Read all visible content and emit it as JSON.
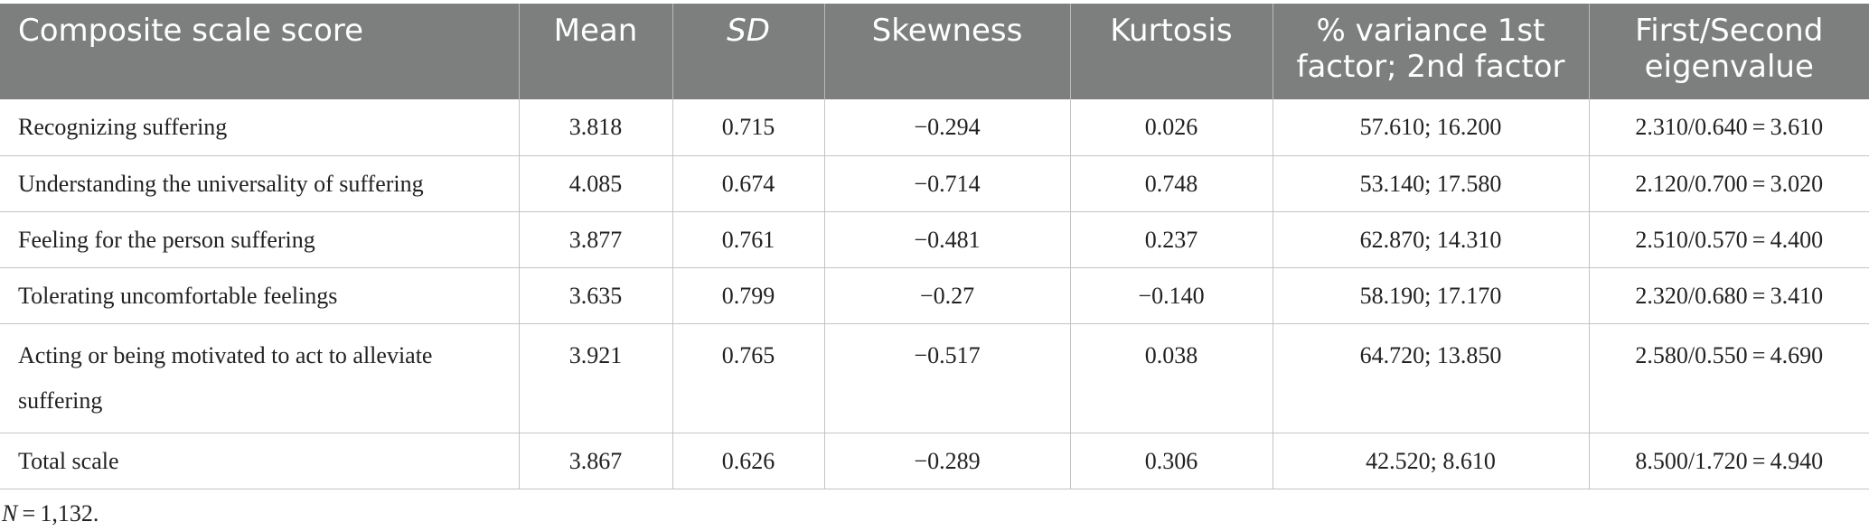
{
  "table": {
    "headers": [
      "Composite scale score",
      "Mean",
      "SD",
      "Skewness",
      "Kurtosis",
      "% variance 1st factor; 2nd factor",
      "First/Second eigenvalue"
    ],
    "rows": [
      [
        "Recognizing suffering",
        "3.818",
        "0.715",
        "−0.294",
        "0.026",
        "57.610; 16.200",
        "2.310/0.640 = 3.610"
      ],
      [
        "Understanding the universality of suffering",
        "4.085",
        "0.674",
        "−0.714",
        "0.748",
        "53.140; 17.580",
        "2.120/0.700 = 3.020"
      ],
      [
        "Feeling for the person suffering",
        "3.877",
        "0.761",
        "−0.481",
        "0.237",
        "62.870; 14.310",
        "2.510/0.570 = 4.400"
      ],
      [
        "Tolerating uncomfortable feelings",
        "3.635",
        "0.799",
        "−0.27",
        "−0.140",
        "58.190; 17.170",
        "2.320/0.680 = 3.410"
      ],
      [
        "Acting or being motivated to act to alleviate suffering",
        "3.921",
        "0.765",
        "−0.517",
        "0.038",
        "64.720; 13.850",
        "2.580/0.550 = 4.690"
      ],
      [
        "Total scale",
        "3.867",
        "0.626",
        "−0.289",
        "0.306",
        "42.520; 8.610",
        "8.500/1.720 = 4.940"
      ]
    ]
  },
  "footnote": {
    "symbol": "N",
    "text": " = 1,132."
  }
}
